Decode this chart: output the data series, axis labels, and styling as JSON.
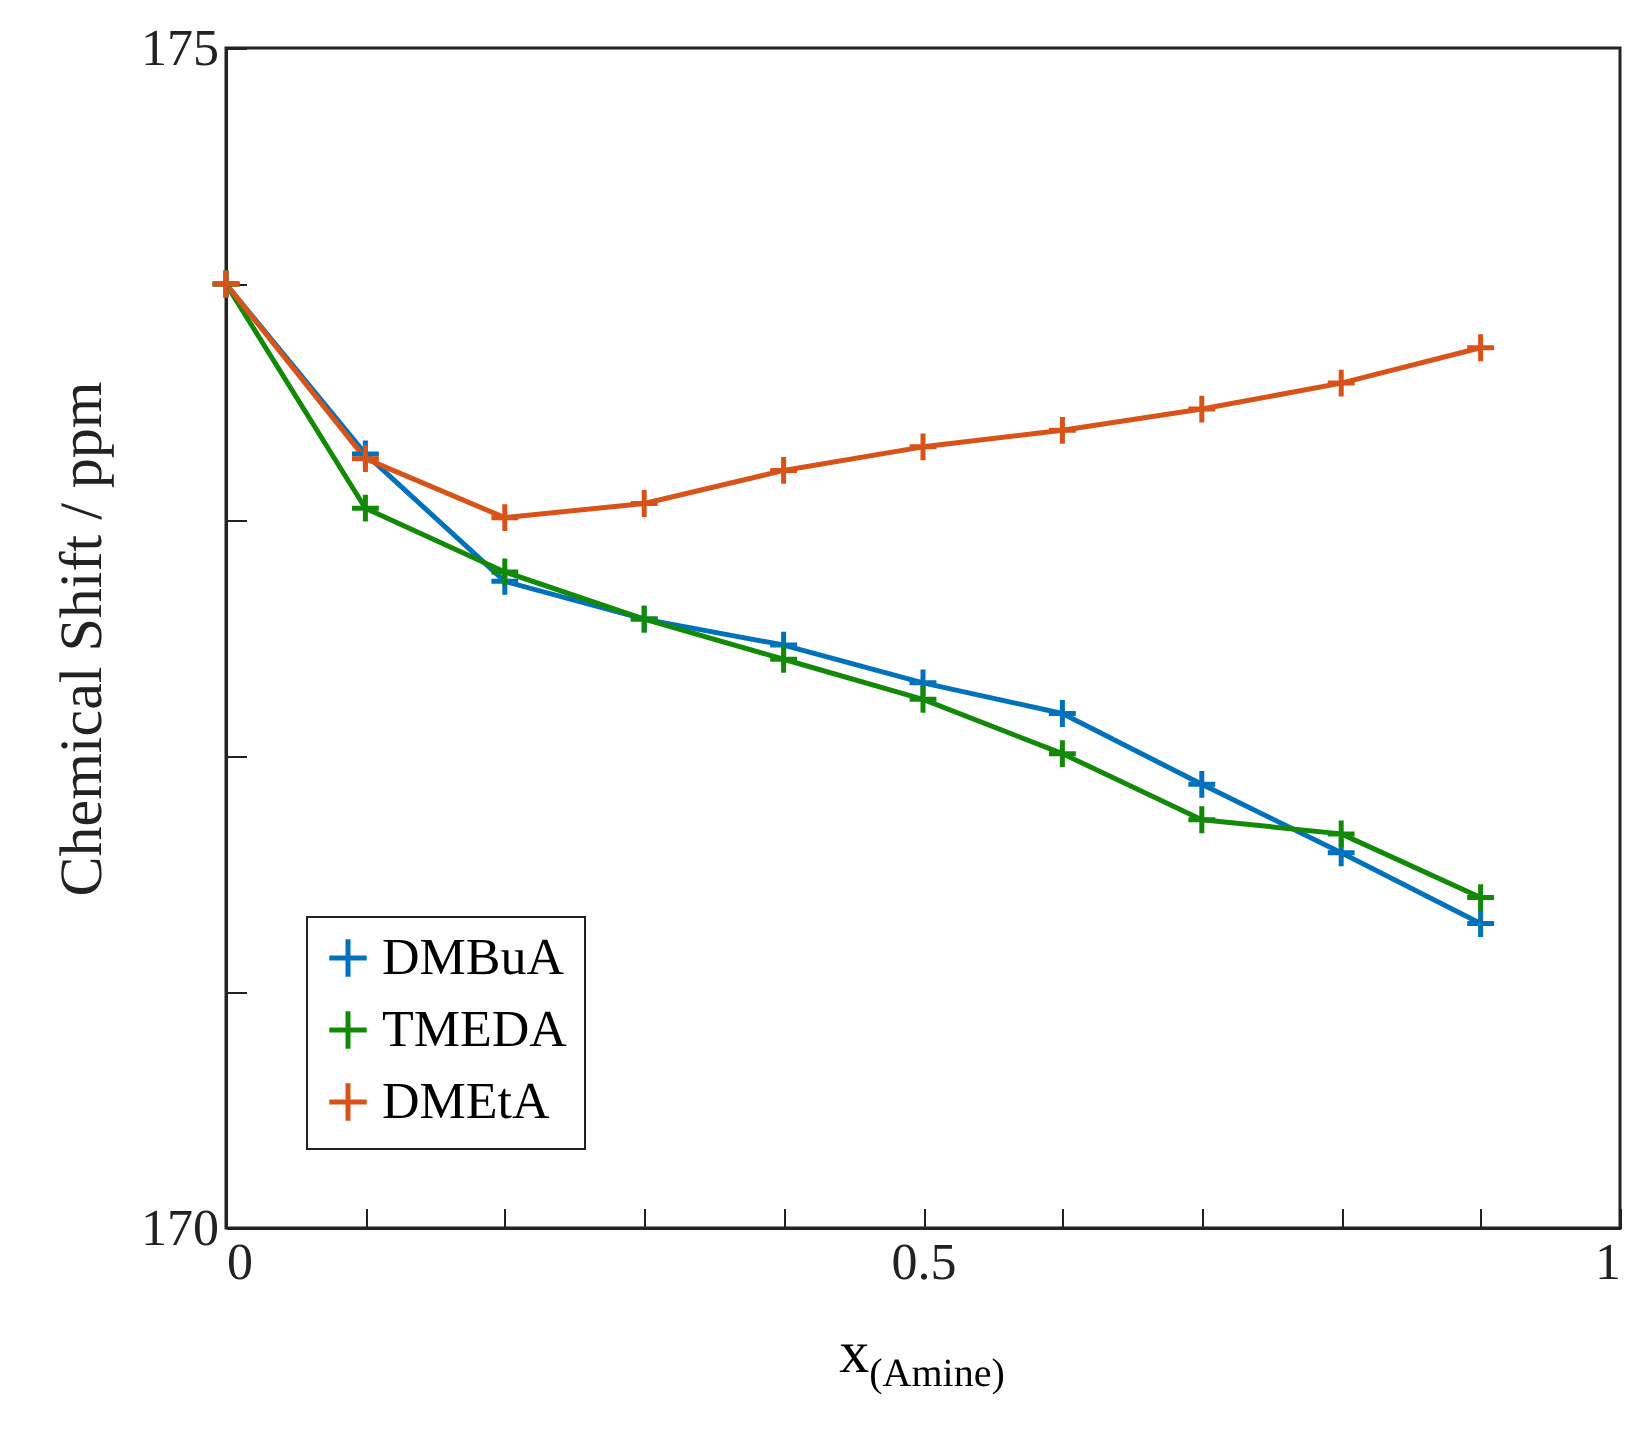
{
  "chart_data": {
    "type": "line",
    "xlabel": "x$_{(Amine)}$",
    "ylabel": "Chemical Shift / ppm",
    "x": [
      0,
      0.1,
      0.2,
      0.3,
      0.4,
      0.5,
      0.6,
      0.7,
      0.8,
      0.9
    ],
    "series": [
      {
        "name": "DMBuA",
        "color": "#0072bd",
        "values": [
          174.0,
          173.28,
          172.74,
          172.58,
          172.47,
          172.31,
          172.18,
          171.88,
          171.59,
          171.29
        ]
      },
      {
        "name": "TMEDA",
        "color": "#138a07",
        "values": [
          174.0,
          173.05,
          172.78,
          172.58,
          172.41,
          172.24,
          172.01,
          171.73,
          171.67,
          171.4
        ]
      },
      {
        "name": "DMEtA",
        "color": "#d95319",
        "values": [
          174.0,
          173.26,
          173.01,
          173.07,
          173.21,
          173.31,
          173.38,
          173.47,
          173.58,
          173.73
        ]
      }
    ],
    "xlim": [
      0,
      1
    ],
    "ylim": [
      170,
      175
    ],
    "xticks": [
      0,
      {
        "value": 0.1,
        "label": null
      },
      {
        "value": 0.2,
        "label": null
      },
      {
        "value": 0.3,
        "label": null
      },
      {
        "value": 0.4,
        "label": null
      },
      0.5,
      {
        "value": 0.6,
        "label": null
      },
      {
        "value": 0.7,
        "label": null
      },
      {
        "value": 0.8,
        "label": null
      },
      {
        "value": 0.9,
        "label": null
      },
      1
    ],
    "yticks": [
      170,
      {
        "value": 171,
        "label": null
      },
      {
        "value": 172,
        "label": null
      },
      {
        "value": 173,
        "label": null
      },
      {
        "value": 174,
        "label": null
      },
      175
    ],
    "grid": false,
    "legend": "bottom left",
    "marker": "cross",
    "line_style": "solid"
  }
}
